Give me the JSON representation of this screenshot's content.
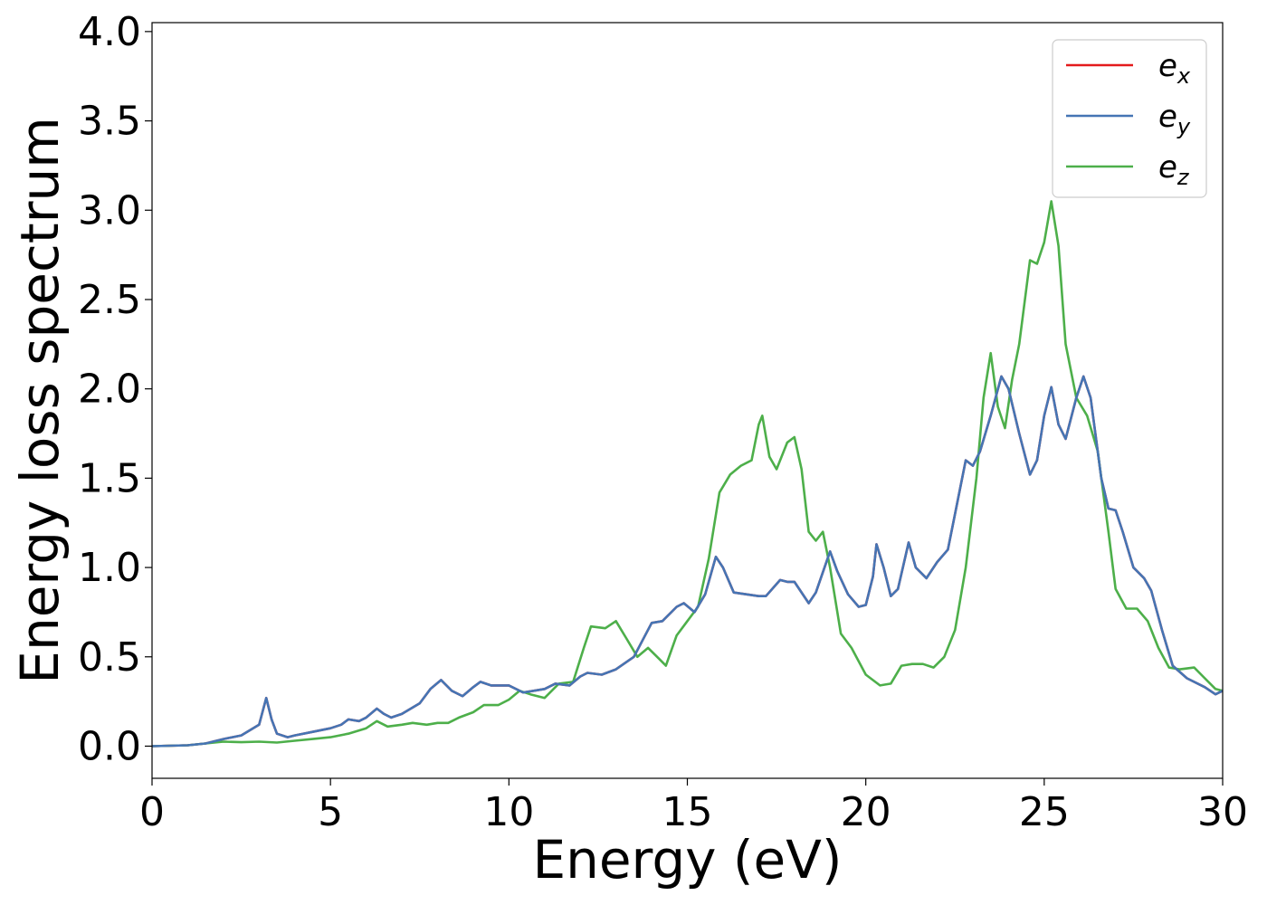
{
  "chart_data": {
    "type": "line",
    "title": "",
    "xlabel": "Energy (eV)",
    "ylabel": "Energy loss spectrum",
    "xlim": [
      0,
      30
    ],
    "ylim": [
      -0.18,
      4.05
    ],
    "xticks": [
      0,
      5,
      10,
      15,
      20,
      25,
      30
    ],
    "xtick_labels": [
      "0",
      "5",
      "10",
      "15",
      "20",
      "25",
      "30"
    ],
    "yticks": [
      0.0,
      0.5,
      1.0,
      1.5,
      2.0,
      2.5,
      3.0,
      3.5,
      4.0
    ],
    "ytick_labels": [
      "0.0",
      "0.5",
      "1.0",
      "1.5",
      "2.0",
      "2.5",
      "3.0",
      "3.5",
      "4.0"
    ],
    "grid": false,
    "legend_position": "top-right",
    "series": [
      {
        "name": "e",
        "subscript": "x",
        "color": "#e41a1c",
        "points": [
          [
            0,
            0
          ],
          [
            1,
            0.005
          ],
          [
            1.5,
            0.015
          ],
          [
            2,
            0.04
          ],
          [
            2.5,
            0.06
          ],
          [
            3,
            0.12
          ],
          [
            3.2,
            0.27
          ],
          [
            3.35,
            0.15
          ],
          [
            3.5,
            0.07
          ],
          [
            3.8,
            0.05
          ],
          [
            4,
            0.06
          ],
          [
            4.5,
            0.08
          ],
          [
            5,
            0.1
          ],
          [
            5.3,
            0.12
          ],
          [
            5.5,
            0.15
          ],
          [
            5.8,
            0.14
          ],
          [
            6,
            0.16
          ],
          [
            6.3,
            0.21
          ],
          [
            6.5,
            0.18
          ],
          [
            6.7,
            0.16
          ],
          [
            7,
            0.18
          ],
          [
            7.5,
            0.24
          ],
          [
            7.8,
            0.32
          ],
          [
            8.1,
            0.37
          ],
          [
            8.4,
            0.31
          ],
          [
            8.7,
            0.28
          ],
          [
            9,
            0.33
          ],
          [
            9.2,
            0.36
          ],
          [
            9.5,
            0.34
          ],
          [
            10,
            0.34
          ],
          [
            10.4,
            0.3
          ],
          [
            11,
            0.32
          ],
          [
            11.3,
            0.35
          ],
          [
            11.7,
            0.34
          ],
          [
            12,
            0.39
          ],
          [
            12.2,
            0.41
          ],
          [
            12.6,
            0.4
          ],
          [
            13,
            0.43
          ],
          [
            13.5,
            0.5
          ],
          [
            14,
            0.69
          ],
          [
            14.3,
            0.7
          ],
          [
            14.7,
            0.78
          ],
          [
            14.9,
            0.8
          ],
          [
            15.2,
            0.75
          ],
          [
            15.5,
            0.85
          ],
          [
            15.8,
            1.06
          ],
          [
            16,
            1.0
          ],
          [
            16.3,
            0.86
          ],
          [
            17,
            0.84
          ],
          [
            17.2,
            0.84
          ],
          [
            17.6,
            0.93
          ],
          [
            17.8,
            0.92
          ],
          [
            18,
            0.92
          ],
          [
            18.4,
            0.8
          ],
          [
            18.6,
            0.86
          ],
          [
            19,
            1.09
          ],
          [
            19.2,
            0.98
          ],
          [
            19.5,
            0.85
          ],
          [
            19.8,
            0.78
          ],
          [
            20,
            0.79
          ],
          [
            20.2,
            0.95
          ],
          [
            20.3,
            1.13
          ],
          [
            20.5,
            1.0
          ],
          [
            20.7,
            0.84
          ],
          [
            20.9,
            0.88
          ],
          [
            21.2,
            1.14
          ],
          [
            21.4,
            1.0
          ],
          [
            21.7,
            0.94
          ],
          [
            22,
            1.03
          ],
          [
            22.3,
            1.1
          ],
          [
            22.5,
            1.3
          ],
          [
            22.8,
            1.6
          ],
          [
            23,
            1.57
          ],
          [
            23.2,
            1.65
          ],
          [
            23.5,
            1.85
          ],
          [
            23.8,
            2.07
          ],
          [
            24,
            2.0
          ],
          [
            24.3,
            1.75
          ],
          [
            24.6,
            1.52
          ],
          [
            24.8,
            1.6
          ],
          [
            25,
            1.85
          ],
          [
            25.2,
            2.01
          ],
          [
            25.4,
            1.8
          ],
          [
            25.6,
            1.72
          ],
          [
            25.9,
            1.95
          ],
          [
            26.1,
            2.07
          ],
          [
            26.3,
            1.95
          ],
          [
            26.6,
            1.5
          ],
          [
            26.8,
            1.33
          ],
          [
            27,
            1.32
          ],
          [
            27.2,
            1.2
          ],
          [
            27.5,
            1.0
          ],
          [
            27.8,
            0.94
          ],
          [
            28,
            0.87
          ],
          [
            28.3,
            0.65
          ],
          [
            28.6,
            0.45
          ],
          [
            29,
            0.38
          ],
          [
            29.5,
            0.33
          ],
          [
            29.8,
            0.29
          ],
          [
            30,
            0.31
          ]
        ]
      },
      {
        "name": "e",
        "subscript": "y",
        "color": "#4575b4",
        "points": [
          [
            0,
            0
          ],
          [
            1,
            0.005
          ],
          [
            1.5,
            0.015
          ],
          [
            2,
            0.04
          ],
          [
            2.5,
            0.06
          ],
          [
            3,
            0.12
          ],
          [
            3.2,
            0.27
          ],
          [
            3.35,
            0.15
          ],
          [
            3.5,
            0.07
          ],
          [
            3.8,
            0.05
          ],
          [
            4,
            0.06
          ],
          [
            4.5,
            0.08
          ],
          [
            5,
            0.1
          ],
          [
            5.3,
            0.12
          ],
          [
            5.5,
            0.15
          ],
          [
            5.8,
            0.14
          ],
          [
            6,
            0.16
          ],
          [
            6.3,
            0.21
          ],
          [
            6.5,
            0.18
          ],
          [
            6.7,
            0.16
          ],
          [
            7,
            0.18
          ],
          [
            7.5,
            0.24
          ],
          [
            7.8,
            0.32
          ],
          [
            8.1,
            0.37
          ],
          [
            8.4,
            0.31
          ],
          [
            8.7,
            0.28
          ],
          [
            9,
            0.33
          ],
          [
            9.2,
            0.36
          ],
          [
            9.5,
            0.34
          ],
          [
            10,
            0.34
          ],
          [
            10.4,
            0.3
          ],
          [
            11,
            0.32
          ],
          [
            11.3,
            0.35
          ],
          [
            11.7,
            0.34
          ],
          [
            12,
            0.39
          ],
          [
            12.2,
            0.41
          ],
          [
            12.6,
            0.4
          ],
          [
            13,
            0.43
          ],
          [
            13.5,
            0.5
          ],
          [
            14,
            0.69
          ],
          [
            14.3,
            0.7
          ],
          [
            14.7,
            0.78
          ],
          [
            14.9,
            0.8
          ],
          [
            15.2,
            0.75
          ],
          [
            15.5,
            0.85
          ],
          [
            15.8,
            1.06
          ],
          [
            16,
            1.0
          ],
          [
            16.3,
            0.86
          ],
          [
            17,
            0.84
          ],
          [
            17.2,
            0.84
          ],
          [
            17.6,
            0.93
          ],
          [
            17.8,
            0.92
          ],
          [
            18,
            0.92
          ],
          [
            18.4,
            0.8
          ],
          [
            18.6,
            0.86
          ],
          [
            19,
            1.09
          ],
          [
            19.2,
            0.98
          ],
          [
            19.5,
            0.85
          ],
          [
            19.8,
            0.78
          ],
          [
            20,
            0.79
          ],
          [
            20.2,
            0.95
          ],
          [
            20.3,
            1.13
          ],
          [
            20.5,
            1.0
          ],
          [
            20.7,
            0.84
          ],
          [
            20.9,
            0.88
          ],
          [
            21.2,
            1.14
          ],
          [
            21.4,
            1.0
          ],
          [
            21.7,
            0.94
          ],
          [
            22,
            1.03
          ],
          [
            22.3,
            1.1
          ],
          [
            22.5,
            1.3
          ],
          [
            22.8,
            1.6
          ],
          [
            23,
            1.57
          ],
          [
            23.2,
            1.65
          ],
          [
            23.5,
            1.85
          ],
          [
            23.8,
            2.07
          ],
          [
            24,
            2.0
          ],
          [
            24.3,
            1.75
          ],
          [
            24.6,
            1.52
          ],
          [
            24.8,
            1.6
          ],
          [
            25,
            1.85
          ],
          [
            25.2,
            2.01
          ],
          [
            25.4,
            1.8
          ],
          [
            25.6,
            1.72
          ],
          [
            25.9,
            1.95
          ],
          [
            26.1,
            2.07
          ],
          [
            26.3,
            1.95
          ],
          [
            26.6,
            1.5
          ],
          [
            26.8,
            1.33
          ],
          [
            27,
            1.32
          ],
          [
            27.2,
            1.2
          ],
          [
            27.5,
            1.0
          ],
          [
            27.8,
            0.94
          ],
          [
            28,
            0.87
          ],
          [
            28.3,
            0.65
          ],
          [
            28.6,
            0.45
          ],
          [
            29,
            0.38
          ],
          [
            29.5,
            0.33
          ],
          [
            29.8,
            0.29
          ],
          [
            30,
            0.31
          ]
        ]
      },
      {
        "name": "e",
        "subscript": "z",
        "color": "#4daf4a",
        "points": [
          [
            0,
            0
          ],
          [
            1,
            0.005
          ],
          [
            1.5,
            0.015
          ],
          [
            2,
            0.025
          ],
          [
            2.5,
            0.022
          ],
          [
            3,
            0.025
          ],
          [
            3.5,
            0.02
          ],
          [
            4,
            0.03
          ],
          [
            4.5,
            0.04
          ],
          [
            5,
            0.05
          ],
          [
            5.5,
            0.07
          ],
          [
            6,
            0.1
          ],
          [
            6.3,
            0.14
          ],
          [
            6.6,
            0.11
          ],
          [
            7,
            0.12
          ],
          [
            7.3,
            0.13
          ],
          [
            7.7,
            0.12
          ],
          [
            8,
            0.13
          ],
          [
            8.3,
            0.13
          ],
          [
            8.6,
            0.16
          ],
          [
            9,
            0.19
          ],
          [
            9.3,
            0.23
          ],
          [
            9.7,
            0.23
          ],
          [
            10,
            0.26
          ],
          [
            10.3,
            0.31
          ],
          [
            10.6,
            0.29
          ],
          [
            11,
            0.27
          ],
          [
            11.4,
            0.35
          ],
          [
            11.8,
            0.36
          ],
          [
            12.1,
            0.55
          ],
          [
            12.3,
            0.67
          ],
          [
            12.7,
            0.66
          ],
          [
            13,
            0.7
          ],
          [
            13.3,
            0.6
          ],
          [
            13.6,
            0.5
          ],
          [
            13.9,
            0.55
          ],
          [
            14.2,
            0.49
          ],
          [
            14.4,
            0.45
          ],
          [
            14.7,
            0.62
          ],
          [
            15,
            0.7
          ],
          [
            15.3,
            0.78
          ],
          [
            15.6,
            1.05
          ],
          [
            15.9,
            1.42
          ],
          [
            16.2,
            1.52
          ],
          [
            16.5,
            1.57
          ],
          [
            16.8,
            1.6
          ],
          [
            17,
            1.8
          ],
          [
            17.1,
            1.85
          ],
          [
            17.3,
            1.62
          ],
          [
            17.5,
            1.55
          ],
          [
            17.8,
            1.7
          ],
          [
            18,
            1.73
          ],
          [
            18.2,
            1.55
          ],
          [
            18.4,
            1.2
          ],
          [
            18.6,
            1.15
          ],
          [
            18.8,
            1.2
          ],
          [
            19,
            1.0
          ],
          [
            19.3,
            0.63
          ],
          [
            19.6,
            0.55
          ],
          [
            20,
            0.4
          ],
          [
            20.4,
            0.34
          ],
          [
            20.7,
            0.35
          ],
          [
            21,
            0.45
          ],
          [
            21.3,
            0.46
          ],
          [
            21.6,
            0.46
          ],
          [
            21.9,
            0.44
          ],
          [
            22.2,
            0.5
          ],
          [
            22.5,
            0.65
          ],
          [
            22.8,
            1.0
          ],
          [
            23.1,
            1.5
          ],
          [
            23.3,
            1.95
          ],
          [
            23.5,
            2.2
          ],
          [
            23.7,
            1.9
          ],
          [
            23.9,
            1.78
          ],
          [
            24.1,
            2.05
          ],
          [
            24.3,
            2.25
          ],
          [
            24.6,
            2.72
          ],
          [
            24.8,
            2.7
          ],
          [
            25,
            2.82
          ],
          [
            25.2,
            3.05
          ],
          [
            25.4,
            2.8
          ],
          [
            25.6,
            2.25
          ],
          [
            25.9,
            1.95
          ],
          [
            26.2,
            1.85
          ],
          [
            26.5,
            1.65
          ],
          [
            26.8,
            1.2
          ],
          [
            27,
            0.88
          ],
          [
            27.3,
            0.77
          ],
          [
            27.6,
            0.77
          ],
          [
            27.9,
            0.7
          ],
          [
            28.2,
            0.55
          ],
          [
            28.5,
            0.44
          ],
          [
            28.8,
            0.43
          ],
          [
            29.2,
            0.44
          ],
          [
            29.5,
            0.38
          ],
          [
            29.8,
            0.32
          ],
          [
            30,
            0.31
          ]
        ]
      }
    ]
  }
}
